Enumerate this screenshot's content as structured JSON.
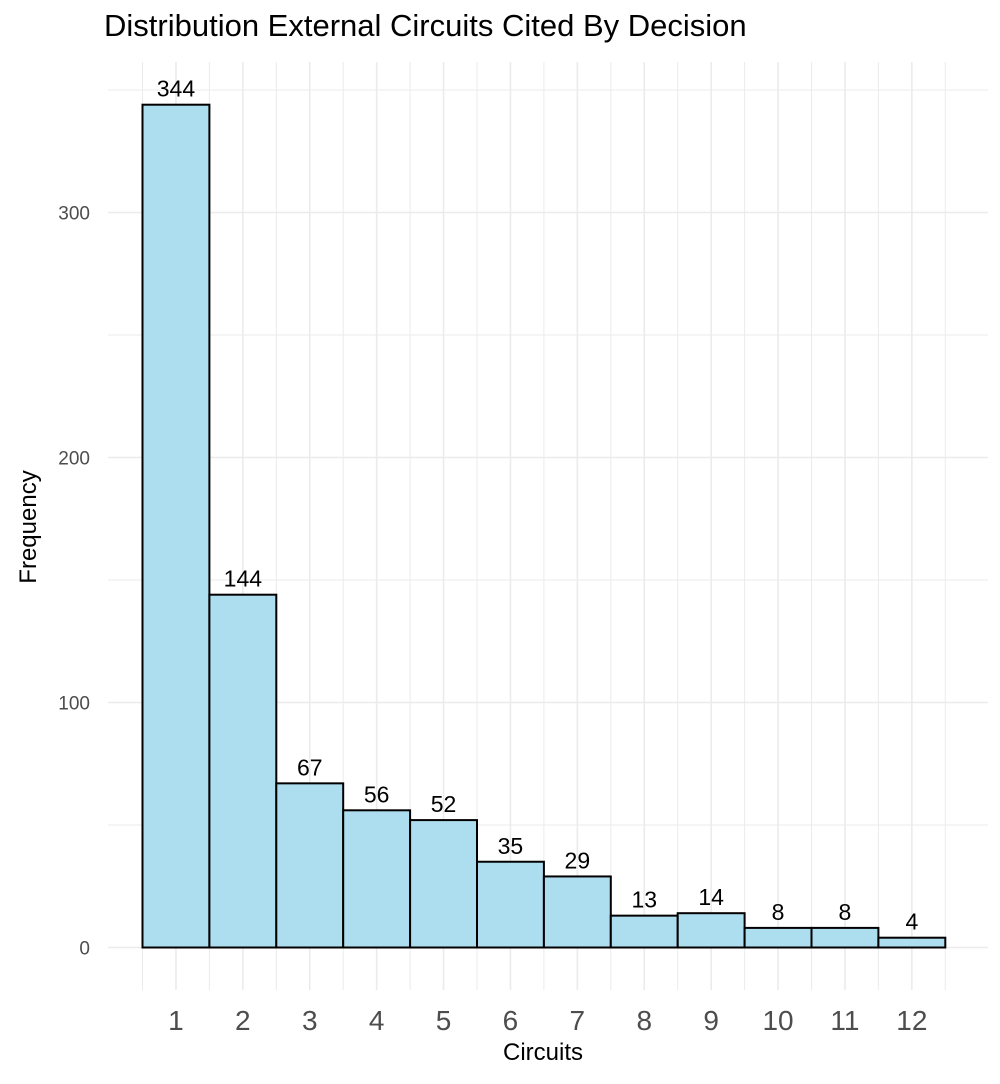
{
  "chart_data": {
    "type": "bar",
    "title": "Distribution External Circuits Cited By Decision",
    "xlabel": "Circuits",
    "ylabel": "Frequency",
    "categories": [
      "1",
      "2",
      "3",
      "4",
      "5",
      "6",
      "7",
      "8",
      "9",
      "10",
      "11",
      "12"
    ],
    "values": [
      344,
      144,
      67,
      56,
      52,
      35,
      29,
      13,
      14,
      8,
      8,
      4
    ],
    "data_labels": [
      "344",
      "144",
      "67",
      "56",
      "52",
      "35",
      "29",
      "13",
      "14",
      "8",
      "8",
      "4"
    ],
    "y_ticks": [
      0,
      100,
      200,
      300
    ],
    "y_tick_labels": [
      "0",
      "100",
      "200",
      "300"
    ],
    "ylim": [
      -17,
      351
    ],
    "grid": true,
    "legend": "none",
    "colors": {
      "bar_fill": "#ADDEF0",
      "bar_stroke": "#000000",
      "grid": "#EBEBEB",
      "tick_text": "#4D4D4D",
      "label_text": "#000000"
    }
  }
}
